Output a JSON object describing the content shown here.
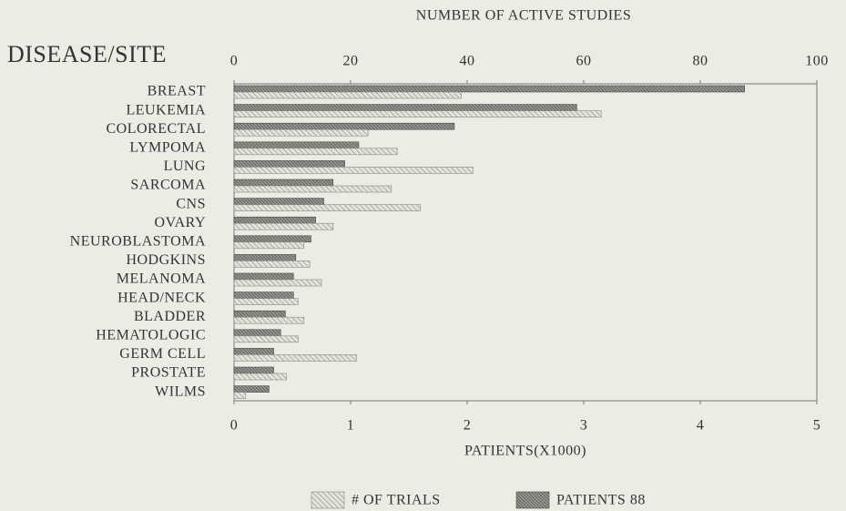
{
  "chart_data": {
    "type": "bar",
    "orientation": "horizontal",
    "title": "NUMBER OF ACTIVE STUDIES",
    "y_label": "DISEASE/SITE",
    "x_label": "PATIENTS(X1000)",
    "categories": [
      "BREAST",
      "LEUKEMIA",
      "COLORECTAL",
      "LYMPOMA",
      "LUNG",
      "SARCOMA",
      "CNS",
      "OVARY",
      "NEUROBLASTOMA",
      "HODGKINS",
      "MELANOMA",
      "HEAD/NECK",
      "BLADDER",
      "HEMATOLOGIC",
      "GERM CELL",
      "PROSTATE",
      "WILMS"
    ],
    "series": [
      {
        "name": "# OF TRIALS",
        "color": "#8a8a84",
        "axis": "x2",
        "values": [
          39,
          63,
          23,
          28,
          41,
          27,
          32,
          17,
          12,
          13,
          15,
          11,
          12,
          11,
          21,
          9,
          2
        ]
      },
      {
        "name": "PATIENTS 88",
        "color": "#4a4a46",
        "axis": "x",
        "values": [
          4.38,
          2.94,
          1.89,
          1.07,
          0.95,
          0.85,
          0.77,
          0.7,
          0.66,
          0.53,
          0.51,
          0.51,
          0.44,
          0.4,
          0.34,
          0.34,
          0.3
        ]
      }
    ],
    "xlim": [
      0,
      5
    ],
    "xticks": [
      0,
      1,
      2,
      3,
      4,
      5
    ],
    "x2lim": [
      0,
      100
    ],
    "x2ticks": [
      0,
      20,
      40,
      60,
      80,
      100
    ]
  }
}
